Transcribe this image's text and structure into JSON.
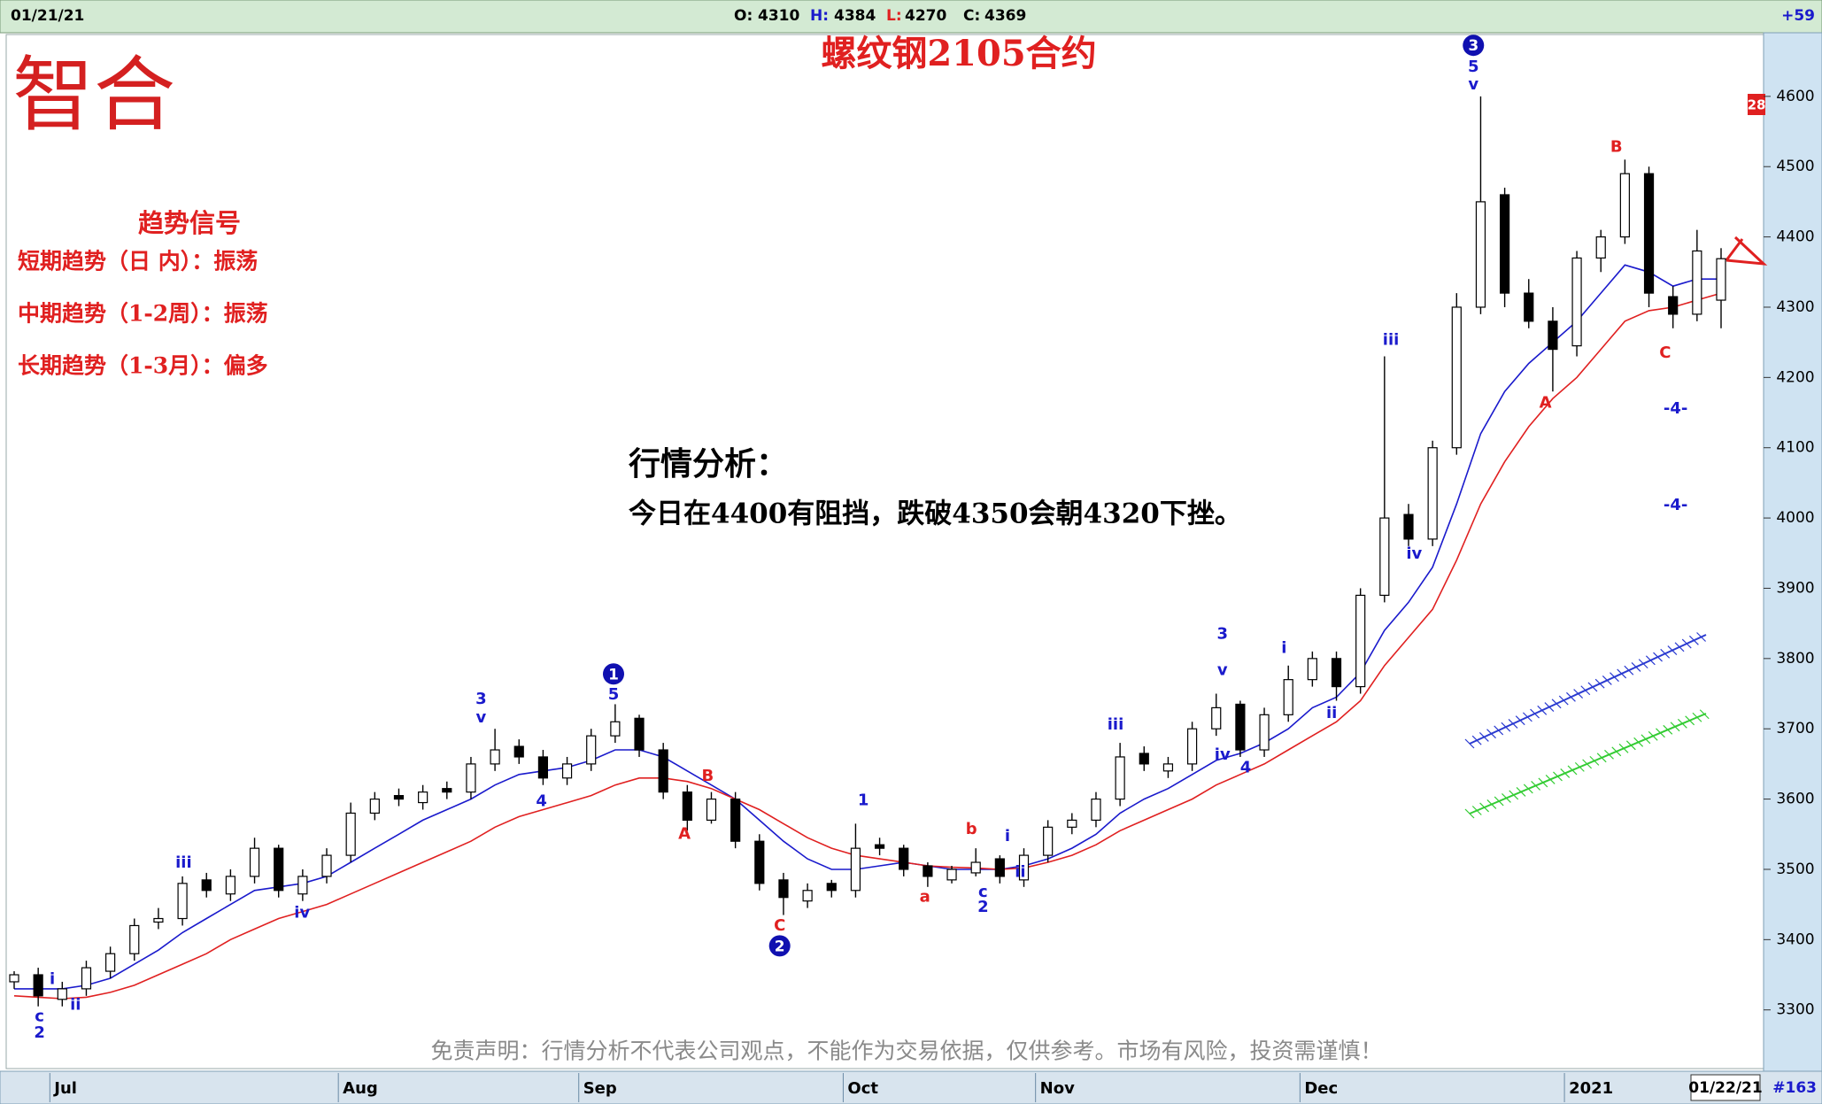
{
  "header": {
    "date": "01/21/21",
    "ohlc": [
      {
        "label": "O:",
        "value": 4310
      },
      {
        "label": "H:",
        "value": 4384
      },
      {
        "label": "L:",
        "value": 4270
      },
      {
        "label": "C:",
        "value": 4369
      }
    ],
    "change": "+59"
  },
  "logo": "智合",
  "signals": {
    "title": "趋势信号",
    "lines": [
      "短期趋势（日 内）：振荡",
      "中期趋势（1-2周）：振荡",
      "长期趋势（1-3月）：偏多"
    ]
  },
  "analysis": {
    "title": "行情分析：",
    "text": "今日在4400有阻挡，跌破4350会朝4320下挫。"
  },
  "disclaimer": "免责声明：行情分析不代表公司观点，不能作为交易依据，仅供参考。市场有风险，投资需谨慎！",
  "footer": {
    "date_box": "01/22/21",
    "count": "#163",
    "marker": "28"
  },
  "chart_data": {
    "type": "candlestick",
    "title": "螺纹钢2105合约",
    "categories": [
      null,
      null,
      "Jul",
      null,
      null,
      null,
      null,
      null,
      null,
      null,
      null,
      null,
      null,
      null,
      "Aug",
      null,
      null,
      null,
      null,
      null,
      null,
      null,
      null,
      null,
      "Sep",
      null,
      null,
      null,
      null,
      null,
      null,
      null,
      null,
      null,
      null,
      "Oct",
      null,
      null,
      null,
      null,
      null,
      null,
      null,
      "Nov",
      null,
      null,
      null,
      null,
      null,
      null,
      null,
      null,
      null,
      null,
      "Dec",
      null,
      null,
      null,
      null,
      null,
      null,
      null,
      null,
      null,
      null,
      "2021",
      null,
      null,
      null,
      null,
      null,
      null
    ],
    "open": [
      3340,
      3350,
      3315,
      3330,
      3355,
      3380,
      3425,
      3430,
      3485,
      3465,
      3490,
      3530,
      3465,
      3490,
      3520,
      3580,
      3605,
      3595,
      3615,
      3610,
      3650,
      3675,
      3660,
      3630,
      3650,
      3690,
      3715,
      3670,
      3610,
      3570,
      3600,
      3540,
      3485,
      3455,
      3480,
      3470,
      3535,
      3530,
      3505,
      3485,
      3495,
      3515,
      3485,
      3520,
      3560,
      3570,
      3600,
      3665,
      3640,
      3650,
      3700,
      3735,
      3670,
      3720,
      3770,
      3800,
      3760,
      3890,
      4005,
      3970,
      4100,
      4300,
      4460,
      4320,
      4280,
      4245,
      4370,
      4400,
      4490,
      4315,
      4290,
      4310
    ],
    "high": [
      3355,
      3360,
      3340,
      3370,
      3390,
      3430,
      3445,
      3490,
      3495,
      3500,
      3545,
      3535,
      3500,
      3530,
      3595,
      3610,
      3615,
      3620,
      3625,
      3660,
      3700,
      3685,
      3670,
      3660,
      3700,
      3735,
      3720,
      3680,
      3620,
      3610,
      3610,
      3550,
      3495,
      3480,
      3485,
      3565,
      3545,
      3535,
      3510,
      3505,
      3530,
      3520,
      3530,
      3570,
      3580,
      3610,
      3680,
      3675,
      3660,
      3710,
      3750,
      3740,
      3730,
      3790,
      3810,
      3810,
      3900,
      4230,
      4020,
      4110,
      4320,
      4600,
      4470,
      4340,
      4300,
      4380,
      4410,
      4510,
      4500,
      4330,
      4410,
      4384
    ],
    "low": [
      3330,
      3305,
      3305,
      3320,
      3345,
      3370,
      3415,
      3420,
      3460,
      3455,
      3480,
      3460,
      3455,
      3480,
      3510,
      3570,
      3590,
      3585,
      3600,
      3600,
      3640,
      3650,
      3620,
      3620,
      3640,
      3680,
      3660,
      3600,
      3555,
      3565,
      3530,
      3470,
      3435,
      3445,
      3460,
      3460,
      3520,
      3490,
      3475,
      3480,
      3490,
      3480,
      3475,
      3510,
      3550,
      3560,
      3590,
      3640,
      3630,
      3640,
      3690,
      3660,
      3660,
      3710,
      3760,
      3740,
      3750,
      3880,
      3960,
      3960,
      4090,
      4290,
      4300,
      4270,
      4180,
      4230,
      4350,
      4390,
      4300,
      4270,
      4280,
      4270
    ],
    "close": [
      3350,
      3320,
      3330,
      3360,
      3380,
      3420,
      3430,
      3480,
      3470,
      3490,
      3530,
      3470,
      3490,
      3520,
      3580,
      3600,
      3600,
      3610,
      3610,
      3650,
      3670,
      3660,
      3630,
      3650,
      3690,
      3710,
      3670,
      3610,
      3570,
      3600,
      3540,
      3480,
      3460,
      3470,
      3470,
      3530,
      3530,
      3500,
      3490,
      3500,
      3510,
      3490,
      3520,
      3560,
      3570,
      3600,
      3660,
      3650,
      3650,
      3700,
      3730,
      3670,
      3720,
      3770,
      3800,
      3760,
      3890,
      4000,
      3970,
      4100,
      4300,
      4450,
      4320,
      4280,
      4240,
      4370,
      4400,
      4490,
      4320,
      4290,
      4380,
      4369
    ],
    "up_color": "#ffffff",
    "down_color": "#000000",
    "lines": [
      {
        "color": "#1a1acc",
        "values": [
          3330,
          3330,
          3330,
          3335,
          3345,
          3365,
          3385,
          3410,
          3430,
          3450,
          3470,
          3475,
          3480,
          3490,
          3510,
          3530,
          3550,
          3570,
          3585,
          3600,
          3620,
          3635,
          3640,
          3645,
          3655,
          3670,
          3670,
          3660,
          3640,
          3620,
          3600,
          3570,
          3540,
          3515,
          3500,
          3500,
          3505,
          3510,
          3505,
          3500,
          3500,
          3500,
          3505,
          3515,
          3530,
          3550,
          3580,
          3600,
          3615,
          3635,
          3655,
          3665,
          3680,
          3700,
          3730,
          3745,
          3780,
          3840,
          3880,
          3930,
          4020,
          4120,
          4180,
          4220,
          4250,
          4280,
          4320,
          4360,
          4350,
          4330,
          4340,
          4340
        ]
      },
      {
        "color": "#e02020",
        "values": [
          3320,
          3318,
          3316,
          3318,
          3325,
          3335,
          3350,
          3365,
          3380,
          3400,
          3415,
          3430,
          3440,
          3450,
          3465,
          3480,
          3495,
          3510,
          3525,
          3540,
          3560,
          3575,
          3585,
          3595,
          3605,
          3620,
          3630,
          3630,
          3625,
          3615,
          3600,
          3585,
          3565,
          3545,
          3530,
          3520,
          3515,
          3510,
          3505,
          3503,
          3502,
          3500,
          3502,
          3510,
          3520,
          3535,
          3555,
          3570,
          3585,
          3600,
          3620,
          3635,
          3650,
          3670,
          3690,
          3710,
          3740,
          3790,
          3830,
          3870,
          3940,
          4020,
          4080,
          4130,
          4170,
          4200,
          4240,
          4280,
          4295,
          4300,
          4310,
          4320
        ]
      }
    ],
    "ylim": [
      3219,
      4688
    ],
    "yticks": [
      3300,
      3400,
      3500,
      3600,
      3700,
      3800,
      3900,
      4000,
      4100,
      4200,
      4300,
      4400,
      4500,
      4600
    ],
    "grid": false,
    "wave_labels": {
      "blue": {
        "color": "#1a1acc",
        "texts": [
          "c",
          "2",
          "i",
          "ii",
          "iii",
          "iv",
          "3",
          "v",
          "4",
          "5",
          "1",
          "c",
          "2",
          "i",
          "ii",
          "iii",
          "3",
          "v",
          "iv",
          "4",
          "i",
          "ii",
          "iii",
          "iv",
          "5",
          "v",
          "-4-",
          "-4-"
        ]
      },
      "red": {
        "color": "#e02020",
        "texts": [
          "B",
          "A",
          "C",
          "a",
          "b",
          "A",
          "B",
          "C"
        ]
      },
      "circled": {
        "color": "#1010b0",
        "texts": [
          "1",
          "2",
          "3"
        ]
      }
    }
  }
}
